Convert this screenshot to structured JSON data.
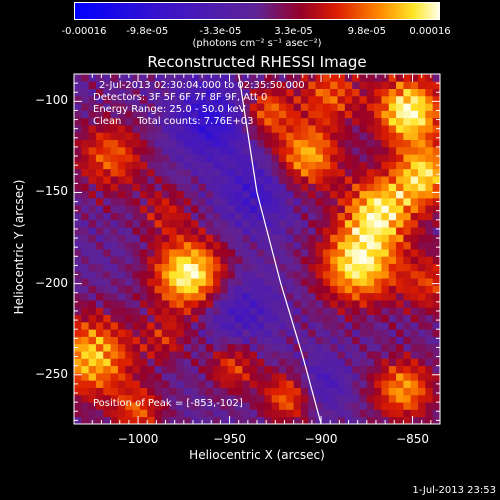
{
  "chart_data": {
    "type": "heatmap",
    "title": "Reconstructed RHESSI Image",
    "xlabel": "Heliocentric X (arcsec)",
    "ylabel": "Heliocentric Y (arcsec)",
    "xlim": [
      -1035,
      -835
    ],
    "ylim": [
      -277,
      -85
    ],
    "x_ticks": [
      -1000,
      -950,
      -900,
      -850
    ],
    "y_ticks": [
      -100,
      -150,
      -200,
      -250
    ],
    "colorbar": {
      "ticks": [
        "-0.00016",
        "-9.8e-05",
        "-3.3e-05",
        "3.3e-05",
        "9.8e-05",
        "0.00016"
      ],
      "units": "(photons cm⁻² s⁻¹ asec⁻²)",
      "range": [
        -0.00016,
        0.00016
      ]
    },
    "annotations": [
      "2-Jul-2013 02:30:04.000 to 02:35:50.000",
      "Detectors: 3F 5F 6F 7F 8F 9F, Att 0",
      "Energy Range: 25.0 - 50.0 keV",
      "Clean     Total counts: 7.76E+03"
    ],
    "peak_label": "Position of Peak = [-853,-102]",
    "peak_position": [
      -853,
      -102
    ],
    "limb_curve": [
      [
        -945,
        -85
      ],
      [
        -935,
        -150
      ],
      [
        -922,
        -200
      ],
      [
        -910,
        -240
      ],
      [
        -900,
        -277
      ]
    ],
    "sources": [
      {
        "x": -972,
        "y": -195,
        "amp": 1.0,
        "sigma": 14
      },
      {
        "x": -1025,
        "y": -240,
        "amp": 0.8,
        "sigma": 16
      },
      {
        "x": -1015,
        "y": -130,
        "amp": 0.55,
        "sigma": 14
      },
      {
        "x": -908,
        "y": -130,
        "amp": 0.75,
        "sigma": 13
      },
      {
        "x": -930,
        "y": -105,
        "amp": 0.6,
        "sigma": 10
      },
      {
        "x": -895,
        "y": -95,
        "amp": 0.55,
        "sigma": 12
      },
      {
        "x": -852,
        "y": -105,
        "amp": 1.0,
        "sigma": 13
      },
      {
        "x": -843,
        "y": -140,
        "amp": 0.8,
        "sigma": 12
      },
      {
        "x": -868,
        "y": -160,
        "amp": 0.85,
        "sigma": 14
      },
      {
        "x": -880,
        "y": -190,
        "amp": 0.9,
        "sigma": 15
      },
      {
        "x": -840,
        "y": -200,
        "amp": 0.45,
        "sigma": 12
      },
      {
        "x": -918,
        "y": -262,
        "amp": 0.6,
        "sigma": 10
      },
      {
        "x": -948,
        "y": -245,
        "amp": 0.5,
        "sigma": 10
      },
      {
        "x": -855,
        "y": -258,
        "amp": 0.7,
        "sigma": 12
      },
      {
        "x": -985,
        "y": -160,
        "amp": 0.35,
        "sigma": 10
      },
      {
        "x": -1000,
        "y": -270,
        "amp": 0.5,
        "sigma": 10
      },
      {
        "x": -985,
        "y": -230,
        "amp": 0.35,
        "sigma": 9
      }
    ],
    "negative_sources": [
      {
        "x": -960,
        "y": -110,
        "amp": 0.6,
        "sigma": 15
      },
      {
        "x": -935,
        "y": -150,
        "amp": 0.45,
        "sigma": 14
      },
      {
        "x": -945,
        "y": -215,
        "amp": 0.4,
        "sigma": 14
      },
      {
        "x": -900,
        "y": -255,
        "amp": 0.35,
        "sigma": 10
      }
    ]
  },
  "footer": "1-Jul-2013 23:53"
}
